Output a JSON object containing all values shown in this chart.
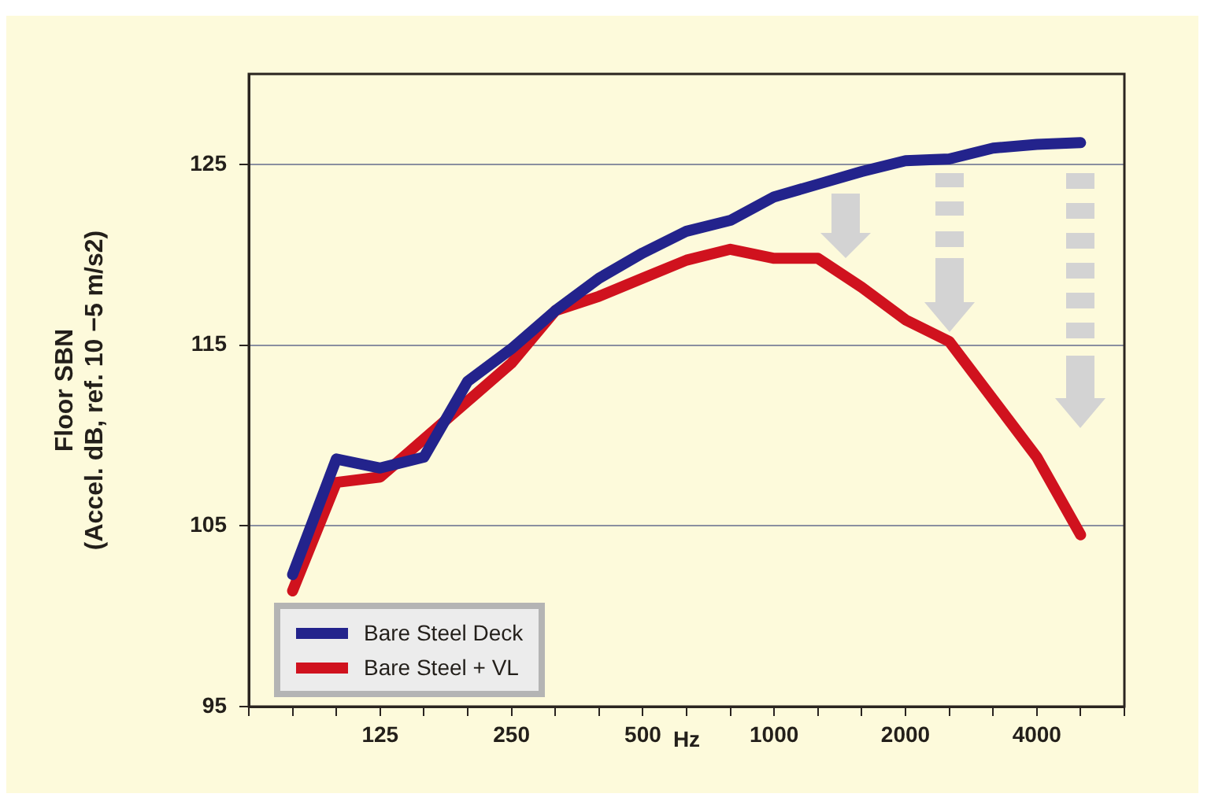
{
  "chart_data": {
    "type": "line",
    "xlabel": "Hz",
    "ylabel": "Floor SBN\n(Accel. dB, ref. 10 −5 m/s2)",
    "categories": [
      null,
      null,
      null,
      "125",
      null,
      null,
      "250",
      null,
      null,
      "500",
      null,
      null,
      "1000",
      null,
      null,
      "2000",
      null,
      null,
      "4000",
      null,
      null
    ],
    "series": [
      {
        "name": "Bare Steel Deck",
        "color": "#23238c",
        "values": [
          null,
          102.3,
          108.7,
          108.2,
          108.8,
          113.0,
          114.8,
          116.9,
          118.7,
          120.1,
          121.3,
          121.9,
          123.2,
          123.9,
          124.6,
          125.2,
          125.3,
          125.9,
          126.1,
          126.2,
          null
        ]
      },
      {
        "name": "Bare Steel + VL",
        "color": "#d0121e",
        "values": [
          null,
          101.4,
          107.4,
          107.7,
          109.8,
          111.9,
          114.0,
          116.9,
          117.7,
          118.7,
          119.7,
          120.3,
          119.8,
          119.8,
          118.2,
          116.4,
          115.2,
          112.0,
          108.8,
          104.5,
          null
        ]
      }
    ],
    "ylim": [
      95,
      130
    ],
    "yticks": [
      95,
      105,
      115,
      125
    ],
    "grid": "y",
    "legend": "bottom left",
    "marker": "none",
    "line_style": "solid"
  }
}
